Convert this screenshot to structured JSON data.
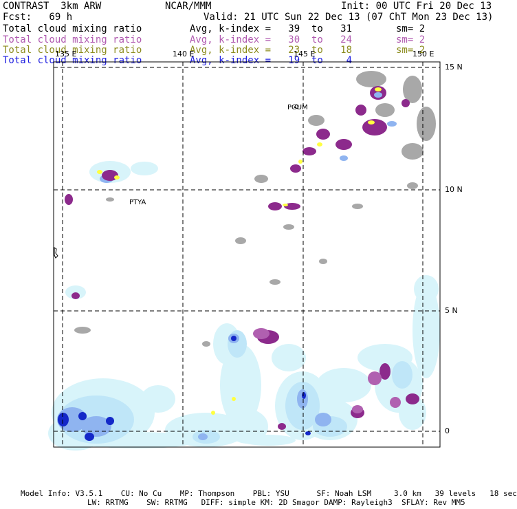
{
  "header": {
    "title": "CONTRAST  3km ARW",
    "center": "NCAR/MMM",
    "init": "Init: 00 UTC Fri 20 Dec 13",
    "fcst": "Fcst:   69 h",
    "valid": "Valid: 21 UTC Sun 22 Dec 13 (07 ChT Mon 23 Dec 13)"
  },
  "fields": [
    {
      "name": "Total cloud mixing ratio",
      "stat": "Avg, k-index =   39  to   31",
      "sm": "sm= 2",
      "color": "#000000"
    },
    {
      "name": "Total cloud mixing ratio",
      "stat": "Avg, k-index =   30  to   24",
      "sm": "sm= 2",
      "color": "#b05ab0"
    },
    {
      "name": "Total cloud mixing ratio",
      "stat": "Avg, k-index =   23  to   18",
      "sm": "sm= 2",
      "color": "#8c8c1e"
    },
    {
      "name": "Total cloud mixing ratio",
      "stat": "Avg, k-index =   19  to    4",
      "sm": "",
      "color": "#2020e0"
    }
  ],
  "map": {
    "lon_labels": [
      "135 E",
      "140 E",
      "145 E",
      "150 E"
    ],
    "lat_labels": [
      "15 N",
      "10 N",
      "5 N",
      "0"
    ],
    "stations": [
      "PGUM",
      "PTYA"
    ]
  },
  "footer": {
    "line1": "Model Info: V3.5.1    CU: No Cu    MP: Thompson    PBL: YSU      SF: Noah LSM     3.0 km   39 levels   18 sec",
    "line2": "LW: RRTMG    SW: RRTMG   DIFF: simple KM: 2D Smagor DAMP: Rayleigh3  SFLAY: Rev MM5"
  },
  "colors": {
    "gray": "#a8a8a8",
    "purple": "#8c2a8c",
    "lightpurple": "#b060b0",
    "yellow": "#ffff40",
    "lightcyan": "#d8f4fa",
    "cyan": "#bfe6f8",
    "lightblue": "#8fb4f0",
    "blue": "#3a52e0",
    "darkblue": "#1428c8"
  }
}
